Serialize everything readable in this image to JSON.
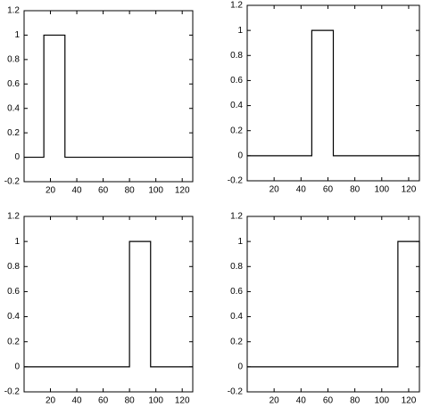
{
  "chart_data": [
    {
      "type": "line",
      "x": [
        0,
        15,
        15,
        31,
        31,
        128
      ],
      "values": [
        0,
        0,
        1,
        1,
        0,
        0
      ],
      "color": "#000000",
      "xlim": [
        0,
        128
      ],
      "ylim": [
        -0.2,
        1.2
      ],
      "xticks": [
        20,
        40,
        60,
        80,
        100,
        120
      ],
      "yticks": [
        -0.2,
        0,
        0.2,
        0.4,
        0.6,
        0.8,
        1,
        1.2
      ]
    },
    {
      "type": "line",
      "x": [
        0,
        48,
        48,
        64,
        64,
        128
      ],
      "values": [
        0,
        0,
        1,
        1,
        0,
        0
      ],
      "color": "#000000",
      "xlim": [
        0,
        128
      ],
      "ylim": [
        -0.2,
        1.2
      ],
      "xticks": [
        20,
        40,
        60,
        80,
        100,
        120
      ],
      "yticks": [
        -0.2,
        0,
        0.2,
        0.4,
        0.6,
        0.8,
        1,
        1.2
      ]
    },
    {
      "type": "line",
      "x": [
        0,
        80,
        80,
        96,
        96,
        128
      ],
      "values": [
        0,
        0,
        1,
        1,
        0,
        0
      ],
      "color": "#000000",
      "xlim": [
        0,
        128
      ],
      "ylim": [
        -0.2,
        1.2
      ],
      "xticks": [
        20,
        40,
        60,
        80,
        100,
        120
      ],
      "yticks": [
        -0.2,
        0,
        0.2,
        0.4,
        0.6,
        0.8,
        1,
        1.2
      ]
    },
    {
      "type": "line",
      "x": [
        0,
        112,
        112,
        128,
        128
      ],
      "values": [
        0,
        0,
        1,
        1,
        0
      ],
      "color": "#000000",
      "xlim": [
        0,
        128
      ],
      "ylim": [
        -0.2,
        1.2
      ],
      "xticks": [
        20,
        40,
        60,
        80,
        100,
        120
      ],
      "yticks": [
        -0.2,
        0,
        0.2,
        0.4,
        0.6,
        0.8,
        1,
        1.2
      ]
    }
  ]
}
